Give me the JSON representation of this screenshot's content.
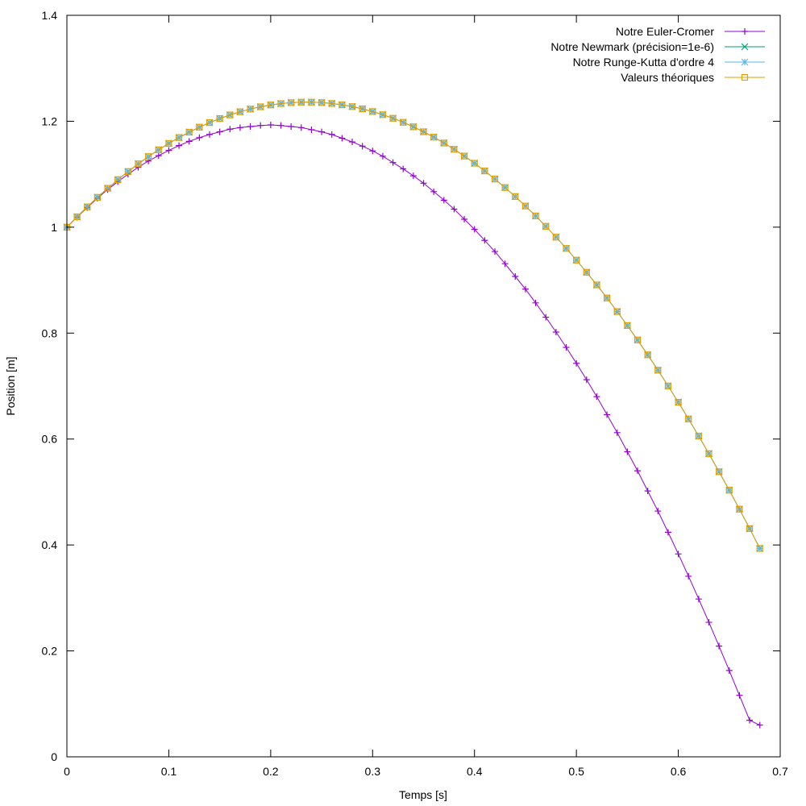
{
  "chart_data": {
    "type": "line",
    "title": "",
    "xlabel": "Temps [s]",
    "ylabel": "Position [m]",
    "xlim": [
      0,
      0.7
    ],
    "ylim": [
      0,
      1.4
    ],
    "xticks": [
      "0",
      "0.1",
      "0.2",
      "0.3",
      "0.4",
      "0.5",
      "0.6",
      "0.7"
    ],
    "yticks": [
      "0",
      "0.2",
      "0.4",
      "0.6",
      "0.8",
      "1",
      "1.2",
      "1.4"
    ],
    "grid": false,
    "legend_position": "top-right",
    "x_start": 0,
    "x_step": 0.01,
    "series": [
      {
        "name": "Notre Euler-Cromer",
        "color": "#9400d3",
        "marker": "plus",
        "values": [
          1.0,
          1.019,
          1.037,
          1.055,
          1.071,
          1.086,
          1.1,
          1.113,
          1.125,
          1.135,
          1.145,
          1.154,
          1.162,
          1.169,
          1.175,
          1.18,
          1.185,
          1.188,
          1.19,
          1.192,
          1.193,
          1.192,
          1.19,
          1.188,
          1.184,
          1.18,
          1.175,
          1.168,
          1.161,
          1.153,
          1.144,
          1.134,
          1.122,
          1.11,
          1.097,
          1.083,
          1.067,
          1.051,
          1.034,
          1.015,
          0.996,
          0.975,
          0.954,
          0.931,
          0.907,
          0.883,
          0.857,
          0.83,
          0.802,
          0.773,
          0.743,
          0.712,
          0.68,
          0.646,
          0.612,
          0.576,
          0.54,
          0.502,
          0.464,
          0.424,
          0.383,
          0.341,
          0.298,
          0.254,
          0.209,
          0.163,
          0.116,
          0.069,
          0.06
        ]
      },
      {
        "name": "Notre Newmark (précision=1e-6)",
        "color": "#009e73",
        "marker": "cross",
        "values": [
          1.0,
          1.0196,
          1.0384,
          1.0564,
          1.0735,
          1.0897,
          1.1051,
          1.1196,
          1.1333,
          1.1461,
          1.1581,
          1.1692,
          1.1794,
          1.1888,
          1.1974,
          1.2051,
          1.2119,
          1.2179,
          1.223,
          1.2273,
          1.2308,
          1.2333,
          1.2351,
          1.236,
          1.236,
          1.2352,
          1.2335,
          1.231,
          1.2276,
          1.2234,
          1.2183,
          1.2124,
          1.2056,
          1.198,
          1.1895,
          1.1801,
          1.17,
          1.1589,
          1.147,
          1.1343,
          1.1207,
          1.1062,
          1.0909,
          1.0748,
          1.0578,
          1.0399,
          1.0212,
          1.0016,
          0.9812,
          0.9599,
          0.9378,
          0.9148,
          0.891,
          0.8663,
          0.8407,
          0.8143,
          0.7871,
          0.759,
          0.73,
          0.7002,
          0.6695,
          0.638,
          0.6057,
          0.5724,
          0.5383,
          0.5034,
          0.4676,
          0.4309,
          0.3934
        ]
      },
      {
        "name": "Notre Runge-Kutta d'ordre 4",
        "color": "#56b4e9",
        "marker": "star",
        "values": [
          1.0,
          1.0196,
          1.0384,
          1.0564,
          1.0735,
          1.0897,
          1.1051,
          1.1196,
          1.1333,
          1.1461,
          1.1581,
          1.1692,
          1.1794,
          1.1888,
          1.1974,
          1.2051,
          1.2119,
          1.2179,
          1.223,
          1.2273,
          1.2308,
          1.2333,
          1.2351,
          1.236,
          1.236,
          1.2352,
          1.2335,
          1.231,
          1.2276,
          1.2234,
          1.2183,
          1.2124,
          1.2056,
          1.198,
          1.1895,
          1.1801,
          1.17,
          1.1589,
          1.147,
          1.1343,
          1.1207,
          1.1062,
          1.0909,
          1.0748,
          1.0578,
          1.0399,
          1.0212,
          1.0016,
          0.9812,
          0.9599,
          0.9378,
          0.9148,
          0.891,
          0.8663,
          0.8407,
          0.8143,
          0.7871,
          0.759,
          0.73,
          0.7002,
          0.6695,
          0.638,
          0.6057,
          0.5724,
          0.5383,
          0.5034,
          0.4676,
          0.4309,
          0.3934
        ]
      },
      {
        "name": "Valeurs théoriques",
        "color": "#e69f00",
        "marker": "square",
        "values": [
          1.0,
          1.0196,
          1.0384,
          1.0564,
          1.0735,
          1.0897,
          1.1051,
          1.1196,
          1.1333,
          1.1461,
          1.1581,
          1.1692,
          1.1794,
          1.1888,
          1.1974,
          1.2051,
          1.2119,
          1.2179,
          1.223,
          1.2273,
          1.2308,
          1.2333,
          1.2351,
          1.236,
          1.236,
          1.2352,
          1.2335,
          1.231,
          1.2276,
          1.2234,
          1.2183,
          1.2124,
          1.2056,
          1.198,
          1.1895,
          1.1801,
          1.17,
          1.1589,
          1.147,
          1.1343,
          1.1207,
          1.1062,
          1.0909,
          1.0748,
          1.0578,
          1.0399,
          1.0212,
          1.0016,
          0.9812,
          0.9599,
          0.9378,
          0.9148,
          0.891,
          0.8663,
          0.8407,
          0.8143,
          0.7871,
          0.759,
          0.73,
          0.7002,
          0.6695,
          0.638,
          0.6057,
          0.5724,
          0.5383,
          0.5034,
          0.4676,
          0.4309,
          0.3934
        ]
      }
    ]
  }
}
